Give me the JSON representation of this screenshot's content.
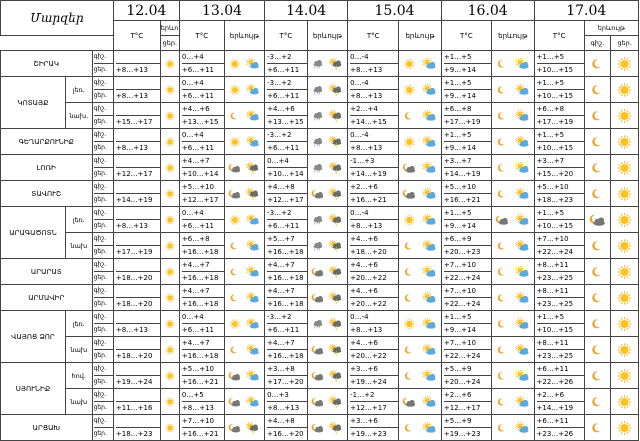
{
  "header": {
    "region_label": "Մարզեր",
    "dates": [
      "12.04",
      "13.04",
      "14.04",
      "15.04",
      "16.04",
      "17.04"
    ],
    "temp_label": "T°C",
    "weather_label": "երևույթ",
    "day_abbr": "ցեր."
  },
  "night_abbr": "գիշ.",
  "day_abbr": "ցեր.",
  "rows": [
    {
      "region": "ՇԻՐԱԿ",
      "part": "",
      "t": [
        "+8…+13",
        "0…+4 / +6…+11",
        "-3…+2 / +6…+11",
        "0…-4 / +8…+13",
        "+1…+5 / +9…+14",
        "+1…+5 / +10…+15"
      ],
      "ic": [
        [
          "sun"
        ],
        [
          "sun",
          "sun_cloud"
        ],
        [
          "cloud_rain",
          "storm"
        ],
        [
          "sun",
          "sun_cloud"
        ],
        [
          "moon",
          "sun_cloud"
        ],
        [
          "moon",
          "sun"
        ]
      ]
    },
    {
      "region": "ԿՈՏԱՅՔ",
      "part": "լեռ.",
      "t": [
        "+8…+13",
        "0…+4 / +6…+11",
        "-3…+2 / +6…+11",
        "0…-4 / +8…+13",
        "+1…+5 / +9…+14",
        "+1…+5 / +10…+15"
      ],
      "ic": [
        [
          "sun"
        ],
        [
          "sun",
          "sun_cloud"
        ],
        [
          "cloud_rain",
          "storm"
        ],
        [
          "sun",
          "sun_cloud"
        ],
        [
          "moon",
          "sun_cloud"
        ],
        [
          "moon",
          "sun"
        ]
      ]
    },
    {
      "region": "ԿՈՏԱՅՔ",
      "part": "նախ.",
      "t": [
        "+15…+17",
        "+4…+6 / +13…+15",
        "+4…+6 / +13…+15",
        "+2…+4 / +14…+15",
        "+6…+8 / +17…+19",
        "+6…+8 / +17…+19"
      ],
      "ic": [
        [
          "sun"
        ],
        [
          "moon",
          "sun_cloud"
        ],
        [
          "cloud_rain",
          "storm"
        ],
        [
          "moon",
          "sun_cloud"
        ],
        [
          "moon",
          "sun_cloud"
        ],
        [
          "moon",
          "sun"
        ]
      ]
    },
    {
      "region": "ԳԵՂԱՐՔՈՒՆԻՔ",
      "part": "",
      "t": [
        "+8…+13",
        "0…+4 / +6…+11",
        "-3…+2 / +6…+11",
        "0…-4 / +8…+13",
        "+1…+5 / +9…+14",
        "+1…+5 / +10…+15"
      ],
      "ic": [
        [
          "sun"
        ],
        [
          "sun",
          "sun_cloud"
        ],
        [
          "cloud_rain",
          "storm"
        ],
        [
          "sun",
          "sun_cloud"
        ],
        [
          "moon",
          "sun_cloud"
        ],
        [
          "moon",
          "sun"
        ]
      ]
    },
    {
      "region": "ԼՈՌԻ",
      "part": "",
      "t": [
        "+12…+17",
        "+4…+7 / +10…+14",
        "0…+4 / +10…+14",
        "-1…+3 / +14…+19",
        "+3…+7 / +14…+19",
        "+3…+7 / +15…+20"
      ],
      "ic": [
        [
          "sun"
        ],
        [
          "night_cloud",
          "storm"
        ],
        [
          "cloud_rain",
          "storm"
        ],
        [
          "night_cloud",
          "sun_cloud"
        ],
        [
          "moon",
          "sun_cloud"
        ],
        [
          "moon",
          "sun"
        ]
      ]
    },
    {
      "region": "ՏԱՎՈՒՇ",
      "part": "",
      "t": [
        "+14…+19",
        "+5…+10 / +12…+17",
        "+4…+8 / +12…+17",
        "+2…+6 / +16…+21",
        "+5…+10 / +16…+21",
        "+5…+10 / +18…+23"
      ],
      "ic": [
        [
          "sun"
        ],
        [
          "night_cloud",
          "storm"
        ],
        [
          "night_cloud",
          "storm"
        ],
        [
          "night_cloud",
          "sun_cloud"
        ],
        [
          "moon",
          "sun_cloud"
        ],
        [
          "moon",
          "sun"
        ]
      ]
    },
    {
      "region": "ԱՐԱԳԱԾՈՏՆ",
      "part": "լեռ.",
      "t": [
        "+8…+13",
        "0…+4 / +6…+11",
        "-3…+2 / +6…+11",
        "0…-4 / +8…+13",
        "+1…+5 / +9…+14",
        "+1…+5 / +10…+15"
      ],
      "ic": [
        [
          "sun"
        ],
        [
          "sun",
          "sun_cloud"
        ],
        [
          "cloud_rain",
          "storm"
        ],
        [
          "sun",
          "sun_cloud"
        ],
        [
          "night_cloud",
          "sun_cloud"
        ],
        [
          "night_cloud",
          "sun"
        ]
      ]
    },
    {
      "region": "ԱՐԱԳԱԾՈՏՆ",
      "part": "նախ",
      "t": [
        "+17…+19",
        "+6…+8 / +16…+18",
        "+5…+7 / +16…+18",
        "+4…+6 / +18…+20",
        "+6…+9 / +20…+23",
        "+7…+10 / +22…+24"
      ],
      "ic": [
        [
          "sun"
        ],
        [
          "moon",
          "sun_cloud"
        ],
        [
          "cloud_rain",
          "storm"
        ],
        [
          "moon",
          "sun_cloud"
        ],
        [
          "moon",
          "sun_cloud"
        ],
        [
          "moon",
          "sun"
        ]
      ]
    },
    {
      "region": "ԱՐԱՐԱՏ",
      "part": "",
      "t": [
        "+18…+20",
        "+4…+7 / +16…+18",
        "+4…+7 / +16…+18",
        "+4…+6 / +20…+22",
        "+7…+10 / +22…+24",
        "+8…+11 / +23…+25"
      ],
      "ic": [
        [
          "sun"
        ],
        [
          "moon",
          "sun_cloud"
        ],
        [
          "night_cloud",
          "storm"
        ],
        [
          "moon",
          "sun_cloud"
        ],
        [
          "moon",
          "sun_cloud"
        ],
        [
          "moon",
          "sun"
        ]
      ]
    },
    {
      "region": "ԱՐՄԱՎԻՐ",
      "part": "",
      "t": [
        "+18…+20",
        "+4…+7 / +16…+18",
        "+4…+7 / +16…+18",
        "+4…+6 / +20…+22",
        "+7…+10 / +22…+24",
        "+8…+11 / +23…+25"
      ],
      "ic": [
        [
          "sun"
        ],
        [
          "moon",
          "sun_cloud"
        ],
        [
          "night_cloud",
          "storm"
        ],
        [
          "moon",
          "sun_cloud"
        ],
        [
          "moon",
          "sun_cloud"
        ],
        [
          "moon",
          "sun"
        ]
      ]
    },
    {
      "region": "ՎԱՅՈՑ ՁՈՐ",
      "part": "լեռ.",
      "t": [
        "+8…+13",
        "0…+4 / +6…+11",
        "-3…+2 / +6…+11",
        "0…-4 / +8…+13",
        "+1…+5 / +9…+14",
        "+1…+5 / +10…+15"
      ],
      "ic": [
        [
          "sun"
        ],
        [
          "sun",
          "sun_cloud"
        ],
        [
          "cloud_rain",
          "storm"
        ],
        [
          "sun",
          "sun_cloud"
        ],
        [
          "moon",
          "sun_cloud"
        ],
        [
          "moon",
          "sun"
        ]
      ]
    },
    {
      "region": "ՎԱՅՈՑ ՁՈՐ",
      "part": "նախ",
      "t": [
        "+18…+20",
        "+4…+7 / +16…+18",
        "+4…+7 / +16…+18",
        "+4…+6 / +20…+22",
        "+7…+10 / +22…+24",
        "+8…+11 / +23…+25"
      ],
      "ic": [
        [
          "sun"
        ],
        [
          "moon",
          "sun_cloud"
        ],
        [
          "night_cloud",
          "storm"
        ],
        [
          "moon",
          "sun_cloud"
        ],
        [
          "moon",
          "sun_cloud"
        ],
        [
          "moon",
          "sun"
        ]
      ]
    },
    {
      "region": "ՍՅՈՒՆԻՔ",
      "part": "հով.",
      "t": [
        "+19…+24",
        "+5…+10 / +16…+21",
        "+3…+8 / +17…+20",
        "+3…+6 / +19…+24",
        "+5…+9 / +20…+24",
        "+6…+11 / +22…+26"
      ],
      "ic": [
        [
          "sun"
        ],
        [
          "night_cloud",
          "sun_cloud"
        ],
        [
          "night_cloud",
          "storm"
        ],
        [
          "moon",
          "sun_cloud"
        ],
        [
          "moon",
          "sun_cloud"
        ],
        [
          "moon",
          "sun"
        ]
      ]
    },
    {
      "region": "ՍՅՈՒՆԻՔ",
      "part": "նախ",
      "t": [
        "+11…+16",
        "0…+5 / +8…+13",
        "0…+3 / +8…+13",
        "-1…+2 / +12…+17",
        "+2…+6 / +12…+17",
        "+2…+6 / +14…+19"
      ],
      "ic": [
        [
          "sun"
        ],
        [
          "night_cloud",
          "sun_cloud"
        ],
        [
          "night_cloud",
          "storm"
        ],
        [
          "night_cloud",
          "sun_cloud"
        ],
        [
          "moon",
          "sun_cloud"
        ],
        [
          "moon",
          "sun"
        ]
      ]
    },
    {
      "region": "ԱՐՑԱԽ",
      "part": "",
      "t": [
        "+18…+23",
        "+7…+10 / +16…+21",
        "+4…+8 / +16…+20",
        "+3…+6 / +19…+23",
        "+5…+9 / +19…+23",
        "+6…+11 / +23…+26"
      ],
      "ic": [
        [
          "sun"
        ],
        [
          "night_cloud",
          "storm"
        ],
        [
          "night_cloud",
          "storm"
        ],
        [
          "moon",
          "sun_cloud"
        ],
        [
          "moon",
          "sun_cloud"
        ],
        [
          "moon",
          "sun"
        ]
      ]
    }
  ]
}
